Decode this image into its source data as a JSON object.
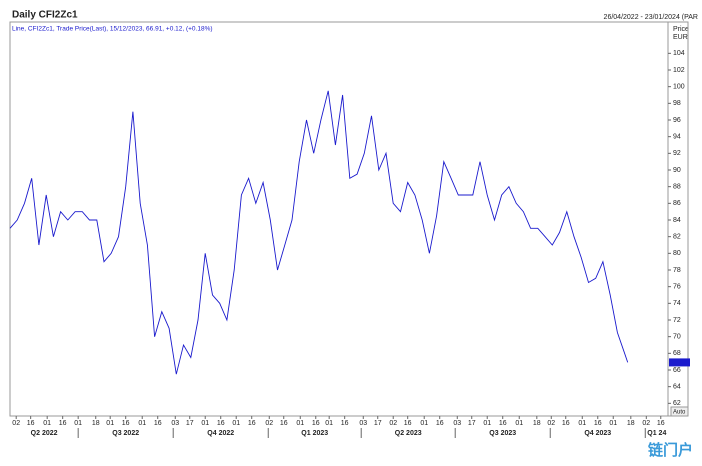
{
  "chart_data": {
    "type": "line",
    "title": "Daily CFI2Zc1",
    "date_range": "26/04/2022 - 23/01/2024 (PAR",
    "subtitle": "Line, CFI2Zc1, Trade Price(Last), 15/12/2023, 66.91, +0.12, (+0.18%)",
    "y_axis_label": "Price",
    "y_axis_unit": "EUR",
    "scale_mode": "Auto",
    "watermark": "链门户",
    "x": [
      "2022-04-26",
      "2022-05-03",
      "2022-05-10",
      "2022-05-17",
      "2022-05-24",
      "2022-05-31",
      "2022-06-07",
      "2022-06-14",
      "2022-06-21",
      "2022-06-28",
      "2022-07-05",
      "2022-07-12",
      "2022-07-19",
      "2022-07-26",
      "2022-08-02",
      "2022-08-09",
      "2022-08-16",
      "2022-08-23",
      "2022-08-30",
      "2022-09-06",
      "2022-09-13",
      "2022-09-20",
      "2022-09-27",
      "2022-10-04",
      "2022-10-11",
      "2022-10-18",
      "2022-10-25",
      "2022-11-01",
      "2022-11-08",
      "2022-11-15",
      "2022-11-22",
      "2022-11-29",
      "2022-12-06",
      "2022-12-13",
      "2022-12-20",
      "2022-12-27",
      "2023-01-03",
      "2023-01-10",
      "2023-01-17",
      "2023-01-24",
      "2023-01-31",
      "2023-02-07",
      "2023-02-14",
      "2023-02-21",
      "2023-02-28",
      "2023-03-07",
      "2023-03-14",
      "2023-03-21",
      "2023-03-28",
      "2023-04-04",
      "2023-04-11",
      "2023-04-18",
      "2023-04-25",
      "2023-05-02",
      "2023-05-09",
      "2023-05-16",
      "2023-05-23",
      "2023-05-30",
      "2023-06-06",
      "2023-06-13",
      "2023-06-20",
      "2023-06-27",
      "2023-07-04",
      "2023-07-11",
      "2023-07-18",
      "2023-07-25",
      "2023-08-01",
      "2023-08-08",
      "2023-08-15",
      "2023-08-22",
      "2023-08-29",
      "2023-09-05",
      "2023-09-12",
      "2023-09-19",
      "2023-09-26",
      "2023-10-03",
      "2023-10-10",
      "2023-10-17",
      "2023-10-24",
      "2023-10-31",
      "2023-11-07",
      "2023-11-14",
      "2023-11-21",
      "2023-11-28",
      "2023-12-05",
      "2023-12-12",
      "2023-12-15"
    ],
    "series": [
      {
        "name": "CFI2Zc1",
        "color": "#1a1acd",
        "values": [
          83,
          84,
          86,
          89,
          81,
          87,
          82,
          85,
          84,
          85,
          85,
          84,
          84,
          79,
          80,
          82,
          88,
          97,
          86,
          81,
          70,
          73,
          71,
          65.5,
          69,
          67.5,
          72,
          80,
          75,
          74,
          72,
          78,
          87,
          89,
          86,
          88.5,
          84,
          78,
          81,
          84,
          91,
          96,
          92,
          96,
          99.5,
          93,
          99,
          89,
          89.5,
          92,
          96.5,
          90,
          92,
          86,
          85,
          88.5,
          87,
          84,
          80,
          84.5,
          91,
          89,
          87,
          87,
          87,
          91,
          87,
          84,
          87,
          88,
          86,
          85,
          83,
          83,
          82,
          81,
          82.5,
          85,
          82,
          79.5,
          76.5,
          77,
          79,
          75,
          70.5,
          68,
          66.91
        ]
      }
    ],
    "xlim": [
      "2022-04-26",
      "2024-01-23"
    ],
    "ylim": [
      61.2,
      106.2
    ],
    "yticks": [
      62,
      64,
      66,
      68,
      70,
      72,
      74,
      76,
      78,
      80,
      82,
      84,
      86,
      88,
      90,
      92,
      94,
      96,
      98,
      100,
      102,
      104
    ],
    "xticks": [
      {
        "value": "2022-05-02",
        "label": "02"
      },
      {
        "value": "2022-05-16",
        "label": "16"
      },
      {
        "value": "2022-06-01",
        "label": "01"
      },
      {
        "value": "2022-06-16",
        "label": "16"
      },
      {
        "value": "2022-07-01",
        "label": "01"
      },
      {
        "value": "2022-07-18",
        "label": "18"
      },
      {
        "value": "2022-08-01",
        "label": "01"
      },
      {
        "value": "2022-08-16",
        "label": "16"
      },
      {
        "value": "2022-09-01",
        "label": "01"
      },
      {
        "value": "2022-09-16",
        "label": "16"
      },
      {
        "value": "2022-10-03",
        "label": "03"
      },
      {
        "value": "2022-10-17",
        "label": "17"
      },
      {
        "value": "2022-11-01",
        "label": "01"
      },
      {
        "value": "2022-11-16",
        "label": "16"
      },
      {
        "value": "2022-12-01",
        "label": "01"
      },
      {
        "value": "2022-12-16",
        "label": "16"
      },
      {
        "value": "2023-01-02",
        "label": "02"
      },
      {
        "value": "2023-01-16",
        "label": "16"
      },
      {
        "value": "2023-02-01",
        "label": "01"
      },
      {
        "value": "2023-02-16",
        "label": "16"
      },
      {
        "value": "2023-03-01",
        "label": "01"
      },
      {
        "value": "2023-03-16",
        "label": "16"
      },
      {
        "value": "2023-04-03",
        "label": "03"
      },
      {
        "value": "2023-04-17",
        "label": "17"
      },
      {
        "value": "2023-05-02",
        "label": "02"
      },
      {
        "value": "2023-05-16",
        "label": "16"
      },
      {
        "value": "2023-06-01",
        "label": "01"
      },
      {
        "value": "2023-06-16",
        "label": "16"
      },
      {
        "value": "2023-07-03",
        "label": "03"
      },
      {
        "value": "2023-07-17",
        "label": "17"
      },
      {
        "value": "2023-08-01",
        "label": "01"
      },
      {
        "value": "2023-08-16",
        "label": "16"
      },
      {
        "value": "2023-09-01",
        "label": "01"
      },
      {
        "value": "2023-09-18",
        "label": "18"
      },
      {
        "value": "2023-10-02",
        "label": "02"
      },
      {
        "value": "2023-10-16",
        "label": "16"
      },
      {
        "value": "2023-11-01",
        "label": "01"
      },
      {
        "value": "2023-11-16",
        "label": "16"
      },
      {
        "value": "2023-12-01",
        "label": "01"
      },
      {
        "value": "2023-12-18",
        "label": "18"
      },
      {
        "value": "2024-01-02",
        "label": "02"
      },
      {
        "value": "2024-01-16",
        "label": "16"
      }
    ],
    "quarters": [
      {
        "value": "2022-04-01",
        "label": "Q2 2022"
      },
      {
        "value": "2022-07-01",
        "label": "Q3 2022"
      },
      {
        "value": "2022-10-01",
        "label": "Q4 2022"
      },
      {
        "value": "2023-01-01",
        "label": "Q1 2023"
      },
      {
        "value": "2023-04-01",
        "label": "Q2 2023"
      },
      {
        "value": "2023-07-01",
        "label": "Q3 2023"
      },
      {
        "value": "2023-10-01",
        "label": "Q4 2023"
      },
      {
        "value": "2024-01-01",
        "label": "Q1 24"
      }
    ],
    "grid": false
  }
}
